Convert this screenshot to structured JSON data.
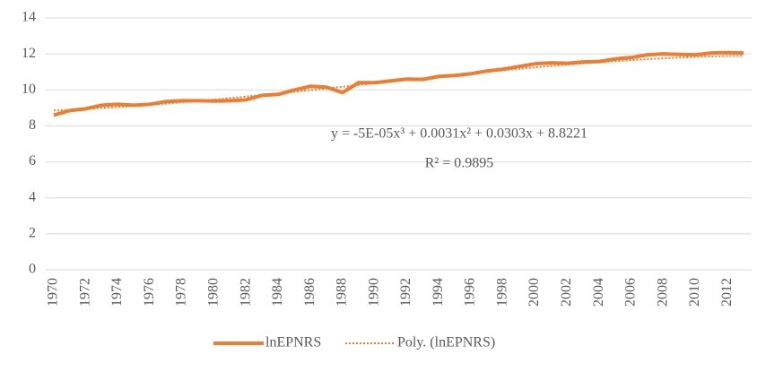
{
  "chart_data": {
    "type": "line",
    "annotations": [
      "y = -5E-05x³ + 0.0031x² + 0.0303x + 8.8221",
      "R² = 0.9895"
    ],
    "categories": [
      "1970",
      null,
      "1972",
      null,
      "1974",
      null,
      "1976",
      null,
      "1978",
      null,
      "1980",
      null,
      "1982",
      null,
      "1984",
      null,
      "1986",
      null,
      "1988",
      null,
      "1990",
      null,
      "1992",
      null,
      "1994",
      null,
      "1996",
      null,
      "1998",
      null,
      "2000",
      null,
      "2002",
      null,
      "2004",
      null,
      "2006",
      null,
      "2008",
      null,
      "2010",
      null,
      "2012",
      null
    ],
    "series": [
      {
        "name": "lnEPNRS",
        "color": "#ed7d31",
        "style": "solid",
        "values": [
          8.6,
          8.85,
          8.95,
          9.15,
          9.2,
          9.15,
          9.2,
          9.35,
          9.4,
          9.4,
          9.38,
          9.4,
          9.45,
          9.7,
          9.75,
          10.0,
          10.2,
          10.15,
          9.85,
          10.4,
          10.4,
          10.5,
          10.6,
          10.58,
          10.75,
          10.8,
          10.9,
          11.05,
          11.15,
          11.3,
          11.45,
          11.5,
          11.48,
          11.55,
          11.58,
          11.72,
          11.8,
          11.95,
          12.0,
          11.97,
          11.95,
          12.05,
          12.07,
          12.05
        ]
      },
      {
        "name": "Poly. (lnEPNRS)",
        "color": "#ed7d31",
        "style": "dotted",
        "values": [
          8.855,
          8.895,
          8.939,
          8.99,
          9.045,
          9.105,
          9.169,
          9.237,
          9.309,
          9.385,
          9.464,
          9.546,
          9.63,
          9.717,
          9.806,
          9.896,
          9.988,
          10.08,
          10.174,
          10.268,
          10.362,
          10.457,
          10.551,
          10.644,
          10.736,
          10.827,
          10.916,
          11.003,
          11.089,
          11.171,
          11.251,
          11.328,
          11.401,
          11.471,
          11.536,
          11.598,
          11.654,
          11.706,
          11.753,
          11.794,
          11.83,
          11.859,
          11.882,
          11.898
        ]
      }
    ],
    "ylim": [
      0,
      14
    ],
    "yticks": [
      0,
      2,
      4,
      6,
      8,
      10,
      12,
      14
    ],
    "grid": true,
    "legend": "bottom"
  }
}
